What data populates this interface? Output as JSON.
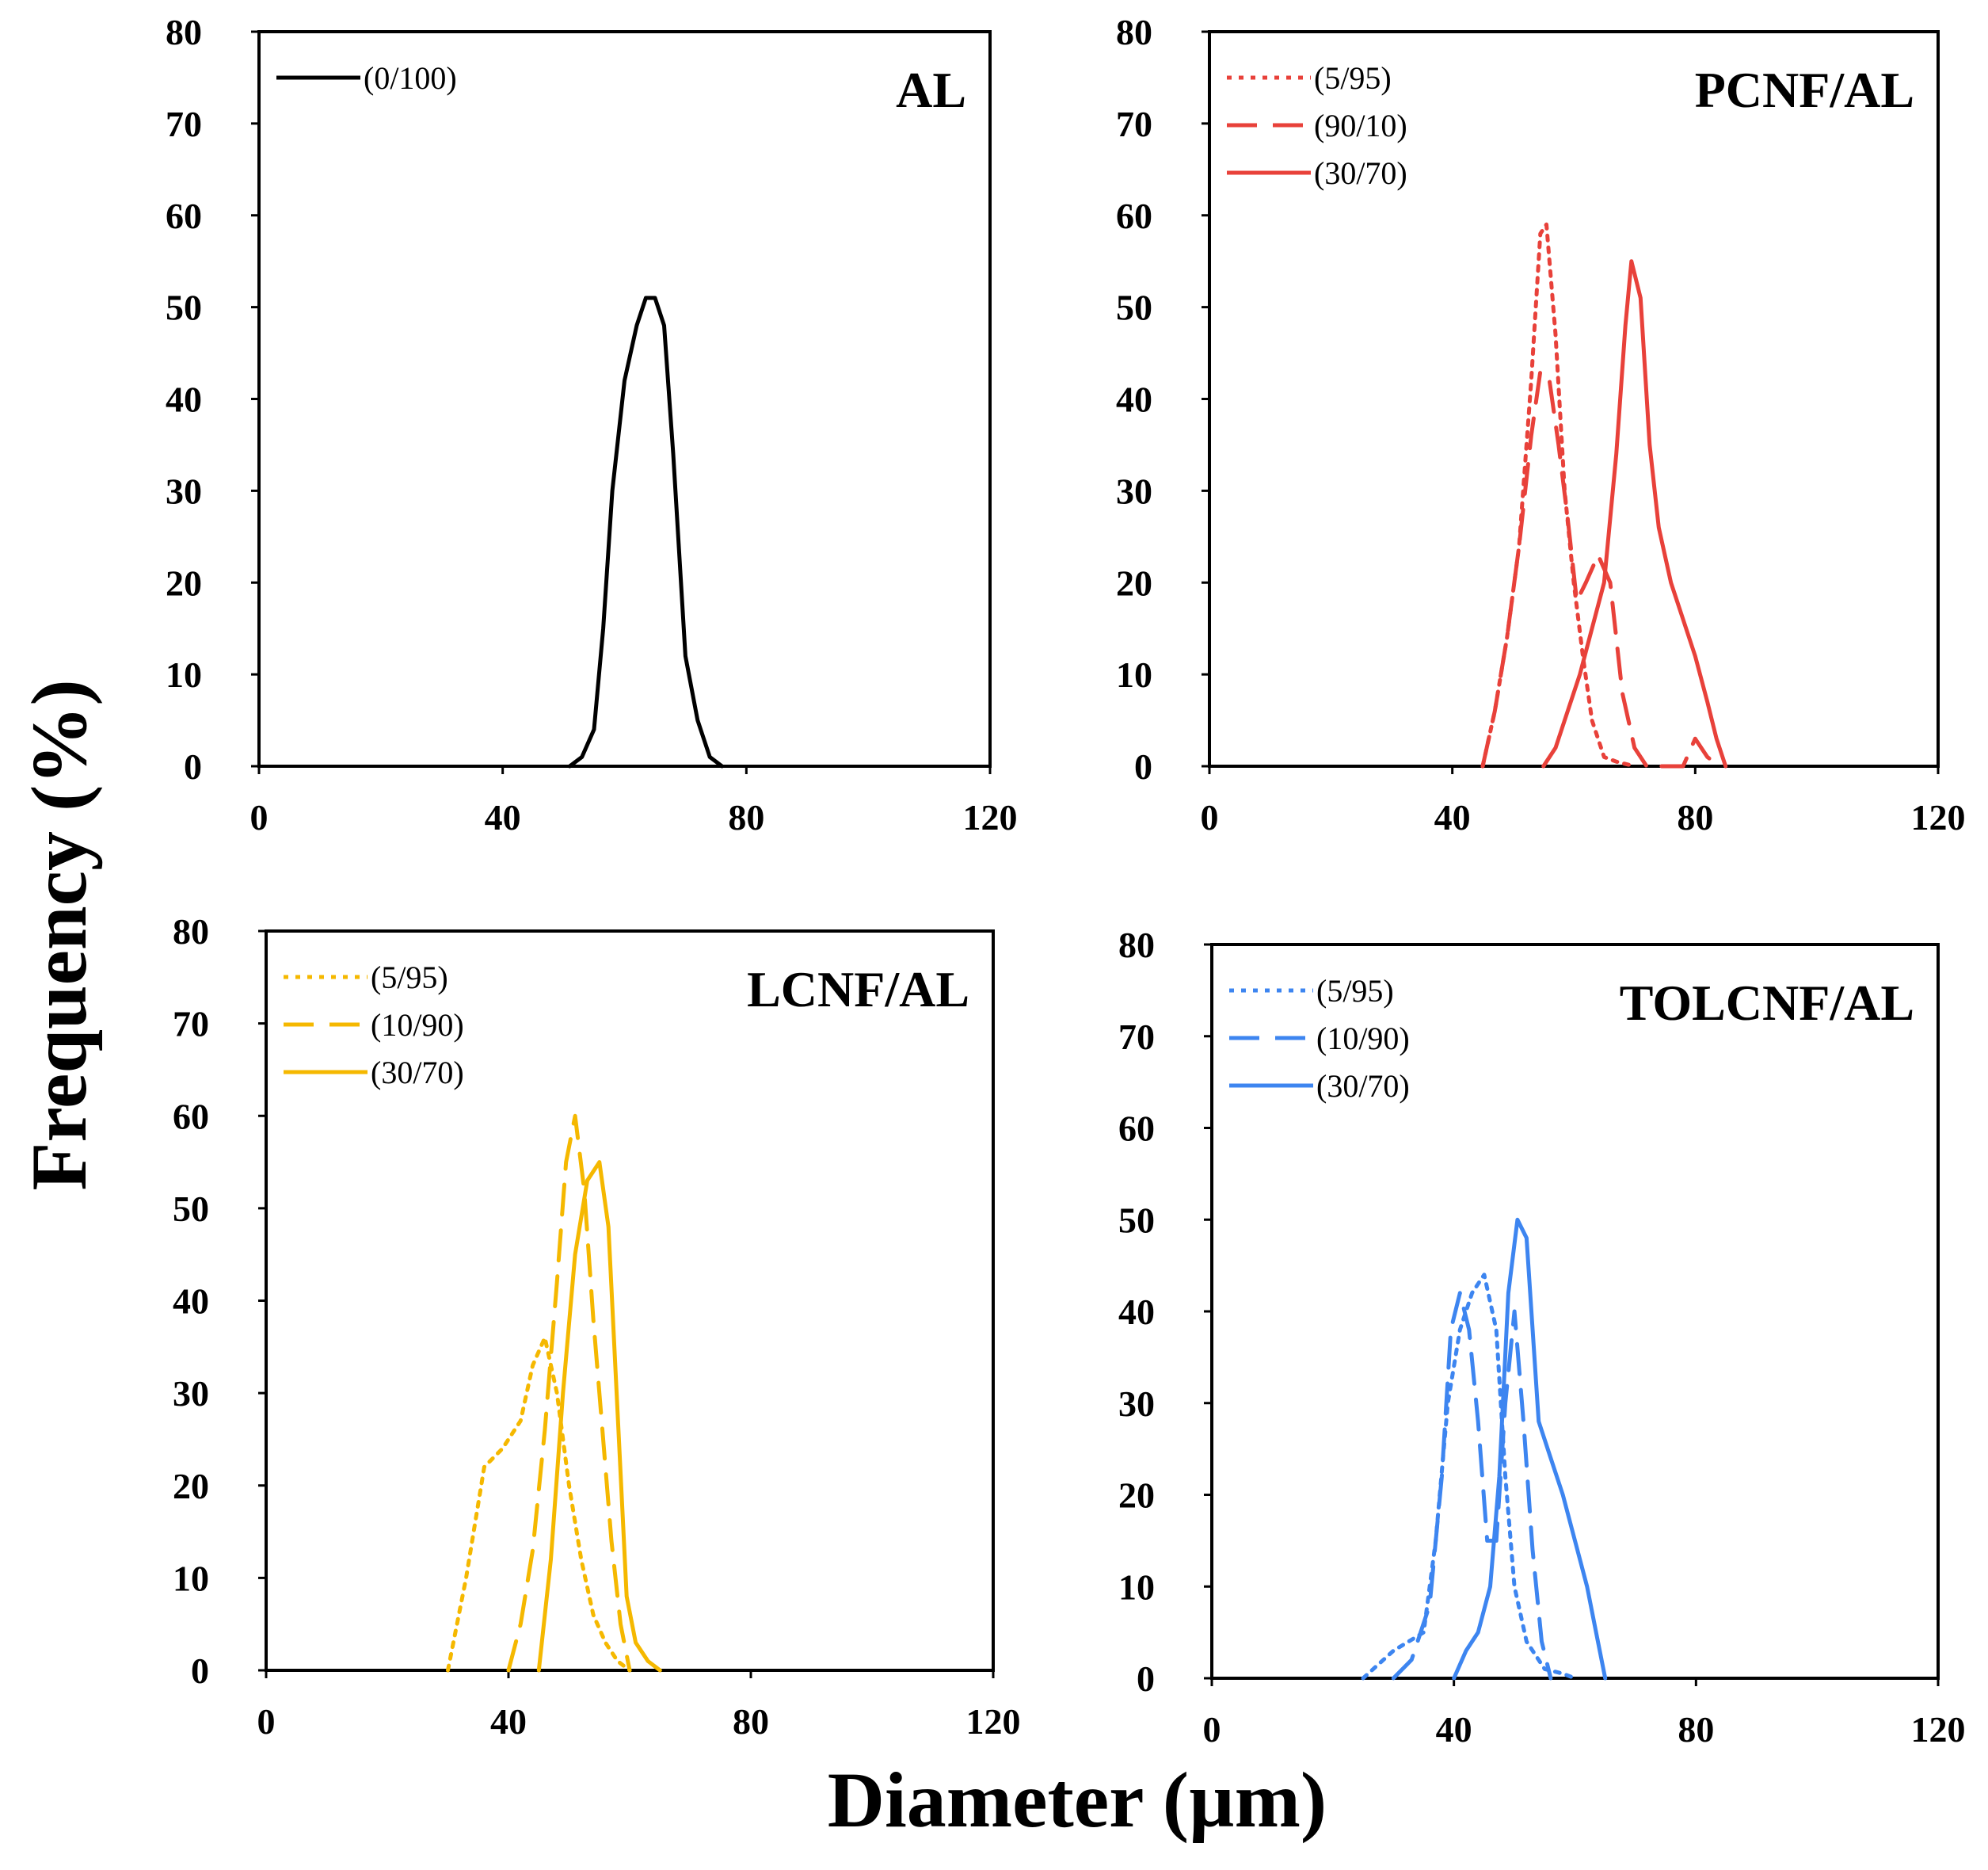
{
  "figure": {
    "ylabel": "Frequency (%)",
    "xlabel": "Diameter (µm)"
  },
  "chart_data": [
    {
      "type": "line",
      "title": "AL",
      "xlim": [
        0,
        120
      ],
      "ylim": [
        0,
        80
      ],
      "xticks": [
        0,
        40,
        80,
        120
      ],
      "yticks": [
        0,
        10,
        20,
        30,
        40,
        50,
        60,
        70,
        80
      ],
      "series": [
        {
          "name": "(0/100)",
          "color": "#000000",
          "style": "solid",
          "x": [
            51,
            53,
            55,
            56.5,
            58,
            60,
            62,
            63.5,
            65,
            66.5,
            68,
            70,
            72,
            74,
            76
          ],
          "y": [
            0,
            1,
            4,
            15,
            30,
            42,
            48,
            51,
            51,
            48,
            34,
            12,
            5,
            1,
            0
          ]
        }
      ]
    },
    {
      "type": "line",
      "title": "PCNF/AL",
      "xlim": [
        0,
        120
      ],
      "ylim": [
        0,
        80
      ],
      "xticks": [
        0,
        40,
        80,
        120
      ],
      "yticks": [
        0,
        10,
        20,
        30,
        40,
        50,
        60,
        70,
        80
      ],
      "series": [
        {
          "name": "(5/95)",
          "color": "#e8413a",
          "style": "dotted",
          "x": [
            45,
            47,
            49,
            51,
            53,
            54.5,
            55.5,
            57,
            58.5,
            60,
            61.5,
            63,
            65,
            67,
            70
          ],
          "y": [
            0,
            6,
            14,
            24,
            42,
            58,
            59,
            47,
            30,
            20,
            12,
            5,
            1,
            0.5,
            0
          ]
        },
        {
          "name": "(90/10)",
          "color": "#e8413a",
          "style": "dashed",
          "x": [
            45,
            47,
            49,
            51,
            53,
            54.5,
            56,
            57.5,
            59,
            60.5,
            62,
            64,
            66,
            68,
            70,
            72,
            75,
            78,
            80,
            82,
            84
          ],
          "y": [
            0,
            6,
            14,
            24,
            36,
            43,
            42,
            35,
            27,
            18,
            20,
            23,
            20,
            8,
            2,
            0,
            0,
            0,
            3,
            1,
            0
          ]
        },
        {
          "name": "(30/70)",
          "color": "#e8413a",
          "style": "solid",
          "x": [
            55,
            57,
            59,
            61,
            63,
            65,
            67,
            68.5,
            69.5,
            71,
            72.5,
            74,
            76,
            78,
            80,
            82,
            83.5,
            85
          ],
          "y": [
            0,
            2,
            6,
            10,
            15,
            20,
            34,
            48,
            55,
            51,
            35,
            26,
            20,
            16,
            12,
            7,
            3,
            0
          ]
        }
      ]
    },
    {
      "type": "line",
      "title": "LCNF/AL",
      "xlim": [
        0,
        120
      ],
      "ylim": [
        0,
        80
      ],
      "xticks": [
        0,
        40,
        80,
        120
      ],
      "yticks": [
        0,
        10,
        20,
        30,
        40,
        50,
        60,
        70,
        80
      ],
      "series": [
        {
          "name": "(5/95)",
          "color": "#f5b800",
          "style": "dotted",
          "x": [
            30,
            33,
            36,
            39,
            42,
            44,
            46,
            48,
            50,
            52,
            54,
            56,
            58,
            60
          ],
          "y": [
            0,
            10,
            22,
            24,
            27,
            33,
            36,
            30,
            20,
            12,
            6,
            3,
            1,
            0
          ]
        },
        {
          "name": "(10/90)",
          "color": "#f5b800",
          "style": "dashed",
          "x": [
            40,
            42,
            44,
            46,
            48,
            49.5,
            51,
            52.5,
            54,
            55.5,
            57,
            58.5,
            60
          ],
          "y": [
            0,
            5,
            13,
            26,
            42,
            55,
            60,
            52,
            38,
            26,
            14,
            5,
            0
          ]
        },
        {
          "name": "(30/70)",
          "color": "#f5b800",
          "style": "solid",
          "x": [
            45,
            47,
            49,
            51,
            53,
            55,
            56.5,
            58,
            59.5,
            61,
            63,
            65
          ],
          "y": [
            0,
            12,
            30,
            45,
            53,
            55,
            48,
            28,
            8,
            3,
            1,
            0
          ]
        }
      ]
    },
    {
      "type": "line",
      "title": "TOLCNF/AL",
      "xlim": [
        0,
        120
      ],
      "ylim": [
        0,
        80
      ],
      "xticks": [
        0,
        40,
        80,
        120
      ],
      "yticks": [
        0,
        10,
        20,
        30,
        40,
        50,
        60,
        70,
        80
      ],
      "series": [
        {
          "name": "(5/95)",
          "color": "#3d85f0",
          "style": "dotted",
          "x": [
            25,
            30,
            35,
            37,
            39,
            41,
            43,
            45,
            47,
            48.5,
            50,
            52,
            55,
            58,
            60
          ],
          "y": [
            0,
            3,
            5,
            15,
            30,
            38,
            42,
            44,
            38,
            22,
            10,
            4,
            1,
            0.5,
            0
          ]
        },
        {
          "name": "(10/90)",
          "color": "#3d85f0",
          "style": "dashed",
          "x": [
            30,
            33,
            36,
            38,
            39.5,
            41,
            42.5,
            44,
            45.5,
            47,
            48.5,
            50,
            51.5,
            53,
            54.5,
            56
          ],
          "y": [
            0,
            2,
            8,
            22,
            38,
            42,
            38,
            28,
            15,
            15,
            30,
            40,
            28,
            14,
            4,
            0
          ]
        },
        {
          "name": "(30/70)",
          "color": "#3d85f0",
          "style": "solid",
          "x": [
            40,
            42,
            44,
            46,
            47.5,
            49,
            50.5,
            52,
            54,
            56,
            58,
            60,
            62,
            63.5,
            65
          ],
          "y": [
            0,
            3,
            5,
            10,
            22,
            42,
            50,
            48,
            28,
            24,
            20,
            15,
            10,
            5,
            0
          ]
        }
      ]
    }
  ]
}
